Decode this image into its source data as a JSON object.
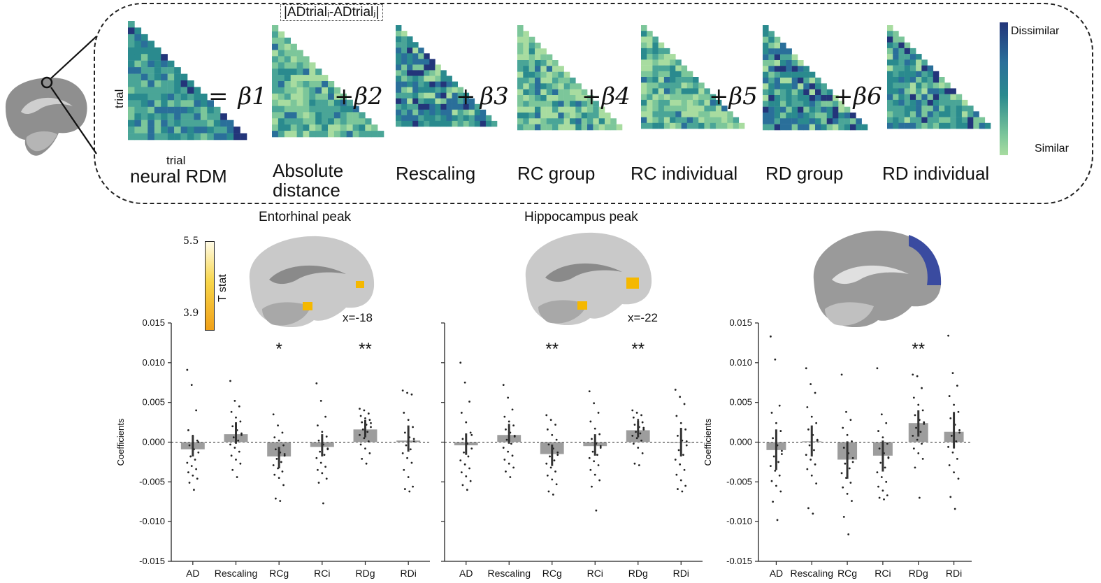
{
  "top": {
    "equation_note": "|ADtrialᵢ-ADtrialⱼ|",
    "neural_label": "neural RDM",
    "axis_trial": "trial",
    "operators": [
      "=",
      "+",
      "+",
      "+",
      "+",
      "+"
    ],
    "betas": [
      "β1",
      "β2",
      "β3",
      "β4",
      "β5",
      "β6"
    ],
    "model_labels": [
      "Absolute distance",
      "Rescaling",
      "RC group",
      "RC individual",
      "RD group",
      "RD individual"
    ],
    "colorbar": {
      "top_label": "Dissimilar",
      "bottom_label": "Similar",
      "top_color": "#23357a",
      "mid_color": "#2a8a8e",
      "bottom_color": "#a8dca0"
    }
  },
  "brains": {
    "tstat_label": "T stat",
    "tstat_max": "5.5",
    "tstat_min": "3.9",
    "coord_1": "x=-18",
    "coord_2": "x=-22",
    "activation_color": "#f5b800",
    "roi_color": "#3a4ba0"
  },
  "chart_data": [
    {
      "type": "bar",
      "title": "Entorhinal peak",
      "ylabel": "Coefficients",
      "ylim": [
        -0.015,
        0.015
      ],
      "yticks": [
        "-0.015",
        "-0.010",
        "-0.005",
        "0.000",
        "0.005",
        "0.010",
        "0.015"
      ],
      "categories": [
        "AD",
        "Rescaling",
        "RCg",
        "RCi",
        "RDg",
        "RDi"
      ],
      "values": [
        -0.0009,
        0.001,
        -0.0018,
        -0.0006,
        0.0016,
        0.0002
      ],
      "ci": [
        [
          -0.0018,
          0.0008
        ],
        [
          -0.0002,
          0.0025
        ],
        [
          -0.0033,
          -0.0006
        ],
        [
          -0.0018,
          0.001
        ],
        [
          0.0006,
          0.0028
        ],
        [
          -0.0012,
          0.0021
        ]
      ],
      "significance": [
        "",
        "",
        "*",
        "",
        "**",
        ""
      ],
      "points": [
        [
          0.0091,
          0.0072,
          0.004,
          0.0015,
          0.0008,
          0.0002,
          -0.0004,
          -0.0009,
          -0.0013,
          -0.0018,
          -0.0022,
          -0.0026,
          -0.003,
          -0.0034,
          -0.0038,
          -0.0042,
          -0.0046,
          -0.0051,
          -0.006,
          0.0
        ],
        [
          0.0077,
          0.0052,
          0.0045,
          0.0038,
          0.0031,
          0.0026,
          0.002,
          0.0015,
          0.0011,
          0.0006,
          0.0002,
          -0.0003,
          -0.0007,
          -0.0012,
          -0.0017,
          -0.0022,
          -0.0027,
          -0.0035,
          -0.0044,
          0.0009
        ],
        [
          0.0035,
          0.0021,
          0.0012,
          0.0006,
          0.0002,
          -0.0004,
          -0.0009,
          -0.0013,
          -0.0017,
          -0.0021,
          -0.0025,
          -0.0029,
          -0.0033,
          -0.0037,
          -0.0041,
          -0.0045,
          -0.0054,
          -0.0071,
          -0.0074,
          -0.0015
        ],
        [
          0.0074,
          0.0052,
          0.0032,
          0.0021,
          0.0013,
          0.0007,
          0.0002,
          -0.0003,
          -0.0008,
          -0.0012,
          -0.0016,
          -0.002,
          -0.0026,
          -0.0031,
          -0.0035,
          -0.0039,
          -0.0046,
          -0.0051,
          -0.0077,
          -0.0009
        ],
        [
          0.0042,
          0.004,
          0.0036,
          0.0033,
          0.003,
          0.0028,
          0.0025,
          0.0022,
          0.0019,
          0.0016,
          0.0013,
          0.0009,
          0.0005,
          0.0001,
          -0.0003,
          -0.0008,
          -0.0014,
          -0.0021,
          -0.0027,
          0.0024
        ],
        [
          0.0065,
          0.0062,
          0.006,
          0.0037,
          0.0028,
          0.0019,
          0.0012,
          0.0006,
          0.0001,
          -0.0004,
          -0.0009,
          -0.0014,
          -0.002,
          -0.0026,
          -0.0035,
          -0.0044,
          -0.0056,
          -0.0059,
          -0.0062,
          0.0004
        ]
      ]
    },
    {
      "type": "bar",
      "title": "Hippocampus peak",
      "ylim": [
        -0.015,
        0.015
      ],
      "categories": [
        "AD",
        "Rescaling",
        "RCg",
        "RCi",
        "RDg",
        "RDi"
      ],
      "values": [
        -0.0004,
        0.0009,
        -0.0015,
        -0.0005,
        0.0015,
        0.0
      ],
      "ci": [
        [
          -0.0016,
          0.0011
        ],
        [
          -0.0002,
          0.0023
        ],
        [
          -0.003,
          -0.0003
        ],
        [
          -0.0017,
          0.001
        ],
        [
          0.0006,
          0.0027
        ],
        [
          -0.0018,
          0.0018
        ]
      ],
      "significance": [
        "",
        "",
        "**",
        "",
        "**",
        ""
      ],
      "points": [
        [
          0.01,
          0.0075,
          0.0051,
          0.0037,
          0.0025,
          0.0012,
          0.0004,
          -0.0002,
          -0.0008,
          -0.0013,
          -0.0018,
          -0.0023,
          -0.0028,
          -0.0033,
          -0.0038,
          -0.0043,
          -0.0049,
          -0.0054,
          -0.006,
          0.0009
        ],
        [
          0.0072,
          0.0056,
          0.0041,
          0.0032,
          0.0026,
          0.0021,
          0.0016,
          0.0012,
          0.0008,
          0.0003,
          -0.0002,
          -0.0007,
          -0.0012,
          -0.0017,
          -0.0022,
          -0.0027,
          -0.0032,
          -0.0037,
          -0.0044,
          0.0007
        ],
        [
          0.0034,
          0.0028,
          0.0022,
          0.0016,
          0.0009,
          0.0003,
          -0.0003,
          -0.0008,
          -0.0013,
          -0.0018,
          -0.0023,
          -0.0027,
          -0.0032,
          -0.0037,
          -0.0042,
          -0.0047,
          -0.0053,
          -0.0062,
          -0.0066,
          -0.0016
        ],
        [
          0.0064,
          0.0049,
          0.0037,
          0.0026,
          0.0017,
          0.001,
          0.0004,
          -0.0002,
          -0.0007,
          -0.0012,
          -0.0016,
          -0.002,
          -0.0024,
          -0.0029,
          -0.0035,
          -0.0041,
          -0.0048,
          -0.0056,
          -0.0086,
          -0.0005
        ],
        [
          0.004,
          0.0037,
          0.0034,
          0.0031,
          0.0028,
          0.0025,
          0.0022,
          0.0019,
          0.0016,
          0.0013,
          0.0011,
          0.0008,
          0.0005,
          0.0002,
          -0.0002,
          -0.0007,
          -0.0014,
          -0.0027,
          -0.0029,
          0.0018
        ],
        [
          0.0066,
          0.0057,
          0.0048,
          0.0033,
          0.0024,
          0.0016,
          0.0008,
          0.0002,
          -0.0004,
          -0.001,
          -0.0016,
          -0.0022,
          -0.0028,
          -0.0035,
          -0.0041,
          -0.0048,
          -0.0055,
          -0.0059,
          -0.0062,
          0.0001
        ]
      ]
    },
    {
      "type": "bar",
      "ylabel": "Coefficients",
      "ylim": [
        -0.015,
        0.015
      ],
      "yticks": [
        "-0.015",
        "-0.010",
        "-0.005",
        "0.000",
        "0.005",
        "0.010",
        "0.015"
      ],
      "categories": [
        "AD",
        "Rescaling",
        "RCg",
        "RCi",
        "RDg",
        "RDi"
      ],
      "values": [
        -0.001,
        0.0001,
        -0.0022,
        -0.0017,
        0.0024,
        0.0013
      ],
      "ci": [
        [
          -0.0035,
          0.0016
        ],
        [
          -0.0018,
          0.0021
        ],
        [
          -0.0046,
          0.0001
        ],
        [
          -0.0037,
          0.0002
        ],
        [
          0.0007,
          0.004
        ],
        [
          -0.0008,
          0.0038
        ]
      ],
      "significance": [
        "",
        "",
        "",
        "",
        "**",
        ""
      ],
      "points": [
        [
          0.0133,
          0.0104,
          0.0046,
          0.0037,
          0.0024,
          0.0014,
          0.0005,
          -0.0004,
          -0.0011,
          -0.0018,
          -0.0025,
          -0.003,
          -0.0036,
          -0.0042,
          -0.0049,
          -0.0055,
          -0.0062,
          -0.0075,
          -0.0098,
          -0.0015
        ],
        [
          0.0093,
          0.0073,
          0.0062,
          0.0044,
          0.0032,
          0.0024,
          0.0016,
          0.0009,
          0.0002,
          -0.0004,
          -0.001,
          -0.0016,
          -0.0022,
          -0.0028,
          -0.0034,
          -0.0042,
          -0.0052,
          -0.0083,
          -0.009,
          0.0003
        ],
        [
          0.0085,
          0.0038,
          0.0028,
          0.0018,
          0.0009,
          0.0001,
          -0.0007,
          -0.0014,
          -0.002,
          -0.0027,
          -0.0033,
          -0.0039,
          -0.0045,
          -0.0051,
          -0.0057,
          -0.0065,
          -0.0074,
          -0.0094,
          -0.0116,
          -0.0025
        ],
        [
          0.0093,
          0.0035,
          0.0024,
          0.0014,
          0.0006,
          -0.0002,
          -0.0008,
          -0.0014,
          -0.002,
          -0.0026,
          -0.0032,
          -0.0038,
          -0.0044,
          -0.005,
          -0.0056,
          -0.0061,
          -0.0067,
          -0.007,
          -0.0072,
          -0.0019
        ],
        [
          0.0085,
          0.0083,
          0.0068,
          0.0056,
          0.0047,
          0.004,
          0.0034,
          0.0028,
          0.0023,
          0.0018,
          0.0013,
          0.0008,
          0.0003,
          -0.0002,
          -0.0008,
          -0.0014,
          -0.0021,
          -0.0032,
          -0.007,
          0.0025
        ],
        [
          0.0134,
          0.0087,
          0.0071,
          0.0058,
          0.0047,
          0.0038,
          0.003,
          0.0022,
          0.0015,
          0.0008,
          0.0001,
          -0.0006,
          -0.0013,
          -0.0021,
          -0.0029,
          -0.0038,
          -0.0046,
          -0.0069,
          -0.0084,
          0.0012
        ]
      ]
    }
  ]
}
